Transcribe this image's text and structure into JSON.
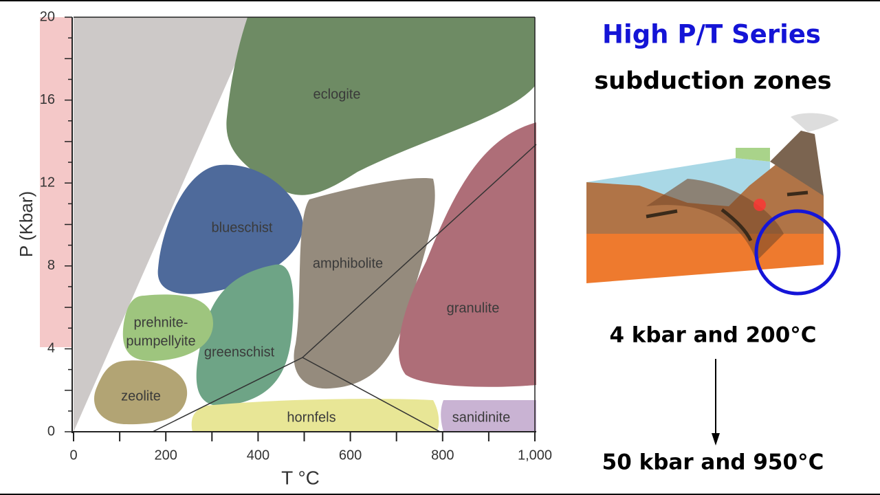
{
  "diagram": {
    "y_axis": {
      "label": "P (Kbar)",
      "ticks": [
        "0",
        "4",
        "8",
        "12",
        "16",
        "20"
      ]
    },
    "x_axis": {
      "label": "T °C",
      "ticks": [
        "0",
        "200",
        "400",
        "600",
        "800",
        "1,000"
      ]
    },
    "facies": [
      "eclogite",
      "blueschist",
      "amphibolite",
      "granulite",
      "prehnite-",
      "pumpellyite",
      "greenschist",
      "zeolite",
      "hornfels",
      "sanidinite"
    ],
    "panel": {
      "title": "High P/T Series",
      "subtitle": "subduction zones",
      "start": "4 kbar and 200°C",
      "end": "50 kbar and 950°C"
    }
  }
}
